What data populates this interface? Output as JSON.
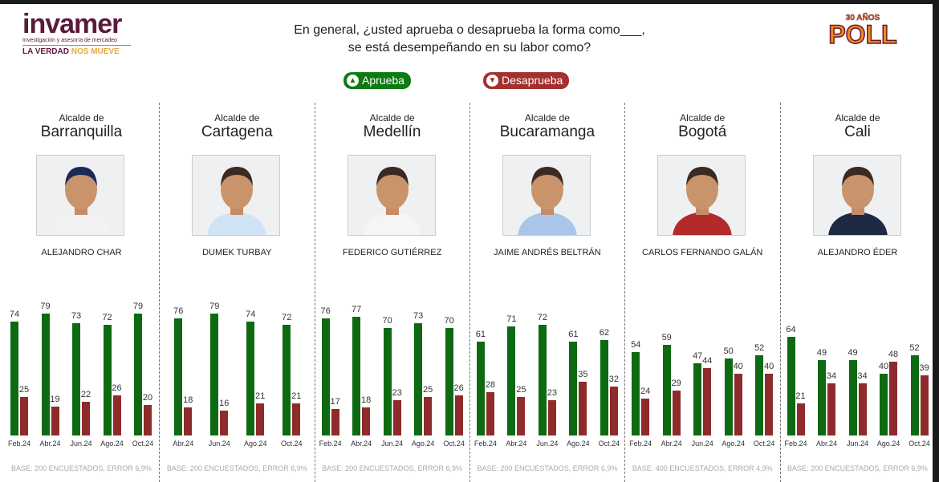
{
  "header": {
    "logo_left": {
      "brand": "invamer",
      "subtitle": "Investigación y asesoría de mercadeo",
      "tagline_a": "LA VERDAD",
      "tagline_b": "NOS MUEVE"
    },
    "logo_right": {
      "years": "30 AÑOS",
      "brand": "POLL"
    },
    "question_line1": "En general, ¿usted aprueba o desaprueba la forma como___,",
    "question_line2": "se está desempeñando en su labor como?"
  },
  "legend": {
    "approve": {
      "label": "Aprueba",
      "icon": "thumbs-up-icon",
      "color": "#0d6a12"
    },
    "disapprove": {
      "label": "Desaprueba",
      "icon": "thumbs-down-icon",
      "color": "#8e2b2b"
    }
  },
  "chart_data": [
    {
      "type": "bar",
      "role_label": "Alcalde de",
      "city": "Barranquilla",
      "person": "ALEJANDRO CHAR",
      "categories": [
        "Feb.24",
        "Abr.24",
        "Jun.24",
        "Ago.24",
        "Oct.24"
      ],
      "series": [
        {
          "name": "Aprueba",
          "values": [
            74,
            79,
            73,
            72,
            79
          ]
        },
        {
          "name": "Desaprueba",
          "values": [
            25,
            19,
            22,
            26,
            20
          ]
        }
      ],
      "footnote": "BASE: 200 ENCUESTADOS, ERROR 6,9%"
    },
    {
      "type": "bar",
      "role_label": "Alcalde de",
      "city": "Cartagena",
      "person": "DUMEK TURBAY",
      "categories": [
        "Abr.24",
        "Jun.24",
        "Ago.24",
        "Oct.24"
      ],
      "series": [
        {
          "name": "Aprueba",
          "values": [
            76,
            79,
            74,
            72
          ]
        },
        {
          "name": "Desaprueba",
          "values": [
            18,
            16,
            21,
            21
          ]
        }
      ],
      "footnote": "BASE: 200 ENCUESTADOS, ERROR 6,9%"
    },
    {
      "type": "bar",
      "role_label": "Alcalde de",
      "city": "Medellín",
      "person": "FEDERICO GUTIÉRREZ",
      "categories": [
        "Feb.24",
        "Abr.24",
        "Jun.24",
        "Ago.24",
        "Oct.24"
      ],
      "series": [
        {
          "name": "Aprueba",
          "values": [
            76,
            77,
            70,
            73,
            70
          ]
        },
        {
          "name": "Desaprueba",
          "values": [
            17,
            18,
            23,
            25,
            26
          ]
        }
      ],
      "footnote": "BASE: 200 ENCUESTADOS, ERROR 6,9%"
    },
    {
      "type": "bar",
      "role_label": "Alcalde de",
      "city": "Bucaramanga",
      "person": "JAIME ANDRÉS BELTRÁN",
      "categories": [
        "Feb.24",
        "Abr.24",
        "Jun.24",
        "Ago.24",
        "Oct.24"
      ],
      "series": [
        {
          "name": "Aprueba",
          "values": [
            61,
            71,
            72,
            61,
            62
          ]
        },
        {
          "name": "Desaprueba",
          "values": [
            28,
            25,
            23,
            35,
            32
          ]
        }
      ],
      "footnote": "BASE: 200 ENCUESTADOS, ERROR 6,9%"
    },
    {
      "type": "bar",
      "role_label": "Alcalde de",
      "city": "Bogotá",
      "person": "CARLOS FERNANDO GALÁN",
      "categories": [
        "Feb.24",
        "Abr.24",
        "Jun.24",
        "Ago.24",
        "Oct.24"
      ],
      "series": [
        {
          "name": "Aprueba",
          "values": [
            54,
            59,
            47,
            50,
            52
          ]
        },
        {
          "name": "Desaprueba",
          "values": [
            24,
            29,
            44,
            40,
            40
          ]
        }
      ],
      "footnote": "BASE: 400 ENCUESTADOS, ERROR 4,9%"
    },
    {
      "type": "bar",
      "role_label": "Alcalde de",
      "city": "Cali",
      "person": "ALEJANDRO ÉDER",
      "categories": [
        "Feb.24",
        "Abr.24",
        "Jun.24",
        "Ago.24",
        "Oct.24"
      ],
      "series": [
        {
          "name": "Aprueba",
          "values": [
            64,
            49,
            49,
            40,
            52
          ]
        },
        {
          "name": "Desaprueba",
          "values": [
            21,
            34,
            34,
            48,
            39
          ]
        }
      ],
      "footnote": "BASE: 200 ENCUESTADOS, ERROR 6,9%"
    }
  ]
}
